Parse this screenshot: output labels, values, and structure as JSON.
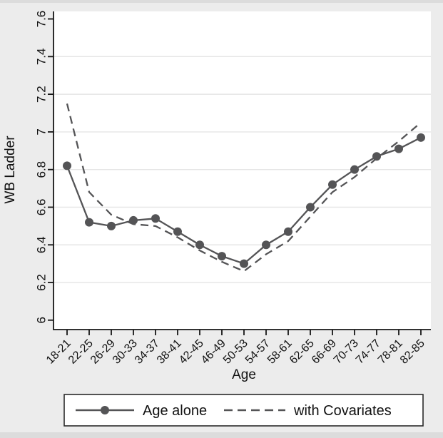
{
  "chart_data": {
    "type": "line",
    "title": "",
    "xlabel": "Age",
    "ylabel": "WB Ladder",
    "categories": [
      "18-21",
      "22-25",
      "26-29",
      "30-33",
      "34-37",
      "38-41",
      "42-45",
      "46-49",
      "50-53",
      "54-57",
      "58-61",
      "62-65",
      "66-69",
      "70-73",
      "74-77",
      "78-81",
      "82-85"
    ],
    "series": [
      {
        "name": "Age alone",
        "style": "solid-with-markers",
        "values": [
          6.82,
          6.52,
          6.5,
          6.53,
          6.54,
          6.47,
          6.4,
          6.34,
          6.3,
          6.4,
          6.47,
          6.6,
          6.72,
          6.8,
          6.87,
          6.91,
          6.97
        ]
      },
      {
        "name": "with Covariates",
        "style": "dashed",
        "values": [
          7.15,
          6.68,
          6.56,
          6.51,
          6.5,
          6.44,
          6.37,
          6.31,
          6.26,
          6.35,
          6.42,
          6.55,
          6.68,
          6.76,
          6.86,
          6.95,
          7.05
        ]
      }
    ],
    "y_ticks": [
      6,
      6.2,
      6.4,
      6.6,
      6.8,
      7,
      7.2,
      7.4,
      7.6
    ],
    "y_tick_labels": [
      "6",
      "6.2",
      "6.4",
      "6.6",
      "6.8",
      "7",
      "7.2",
      "7.4",
      "7.6"
    ],
    "ylim": [
      5.95,
      7.64
    ],
    "grid": "horizontal",
    "legend_position": "bottom",
    "colors": {
      "series": "#545456",
      "axis": "#161616",
      "grid": "#e5e5e5",
      "plot_background": "#ffffff",
      "figure_background": "#ececec",
      "text": "#111111"
    }
  }
}
